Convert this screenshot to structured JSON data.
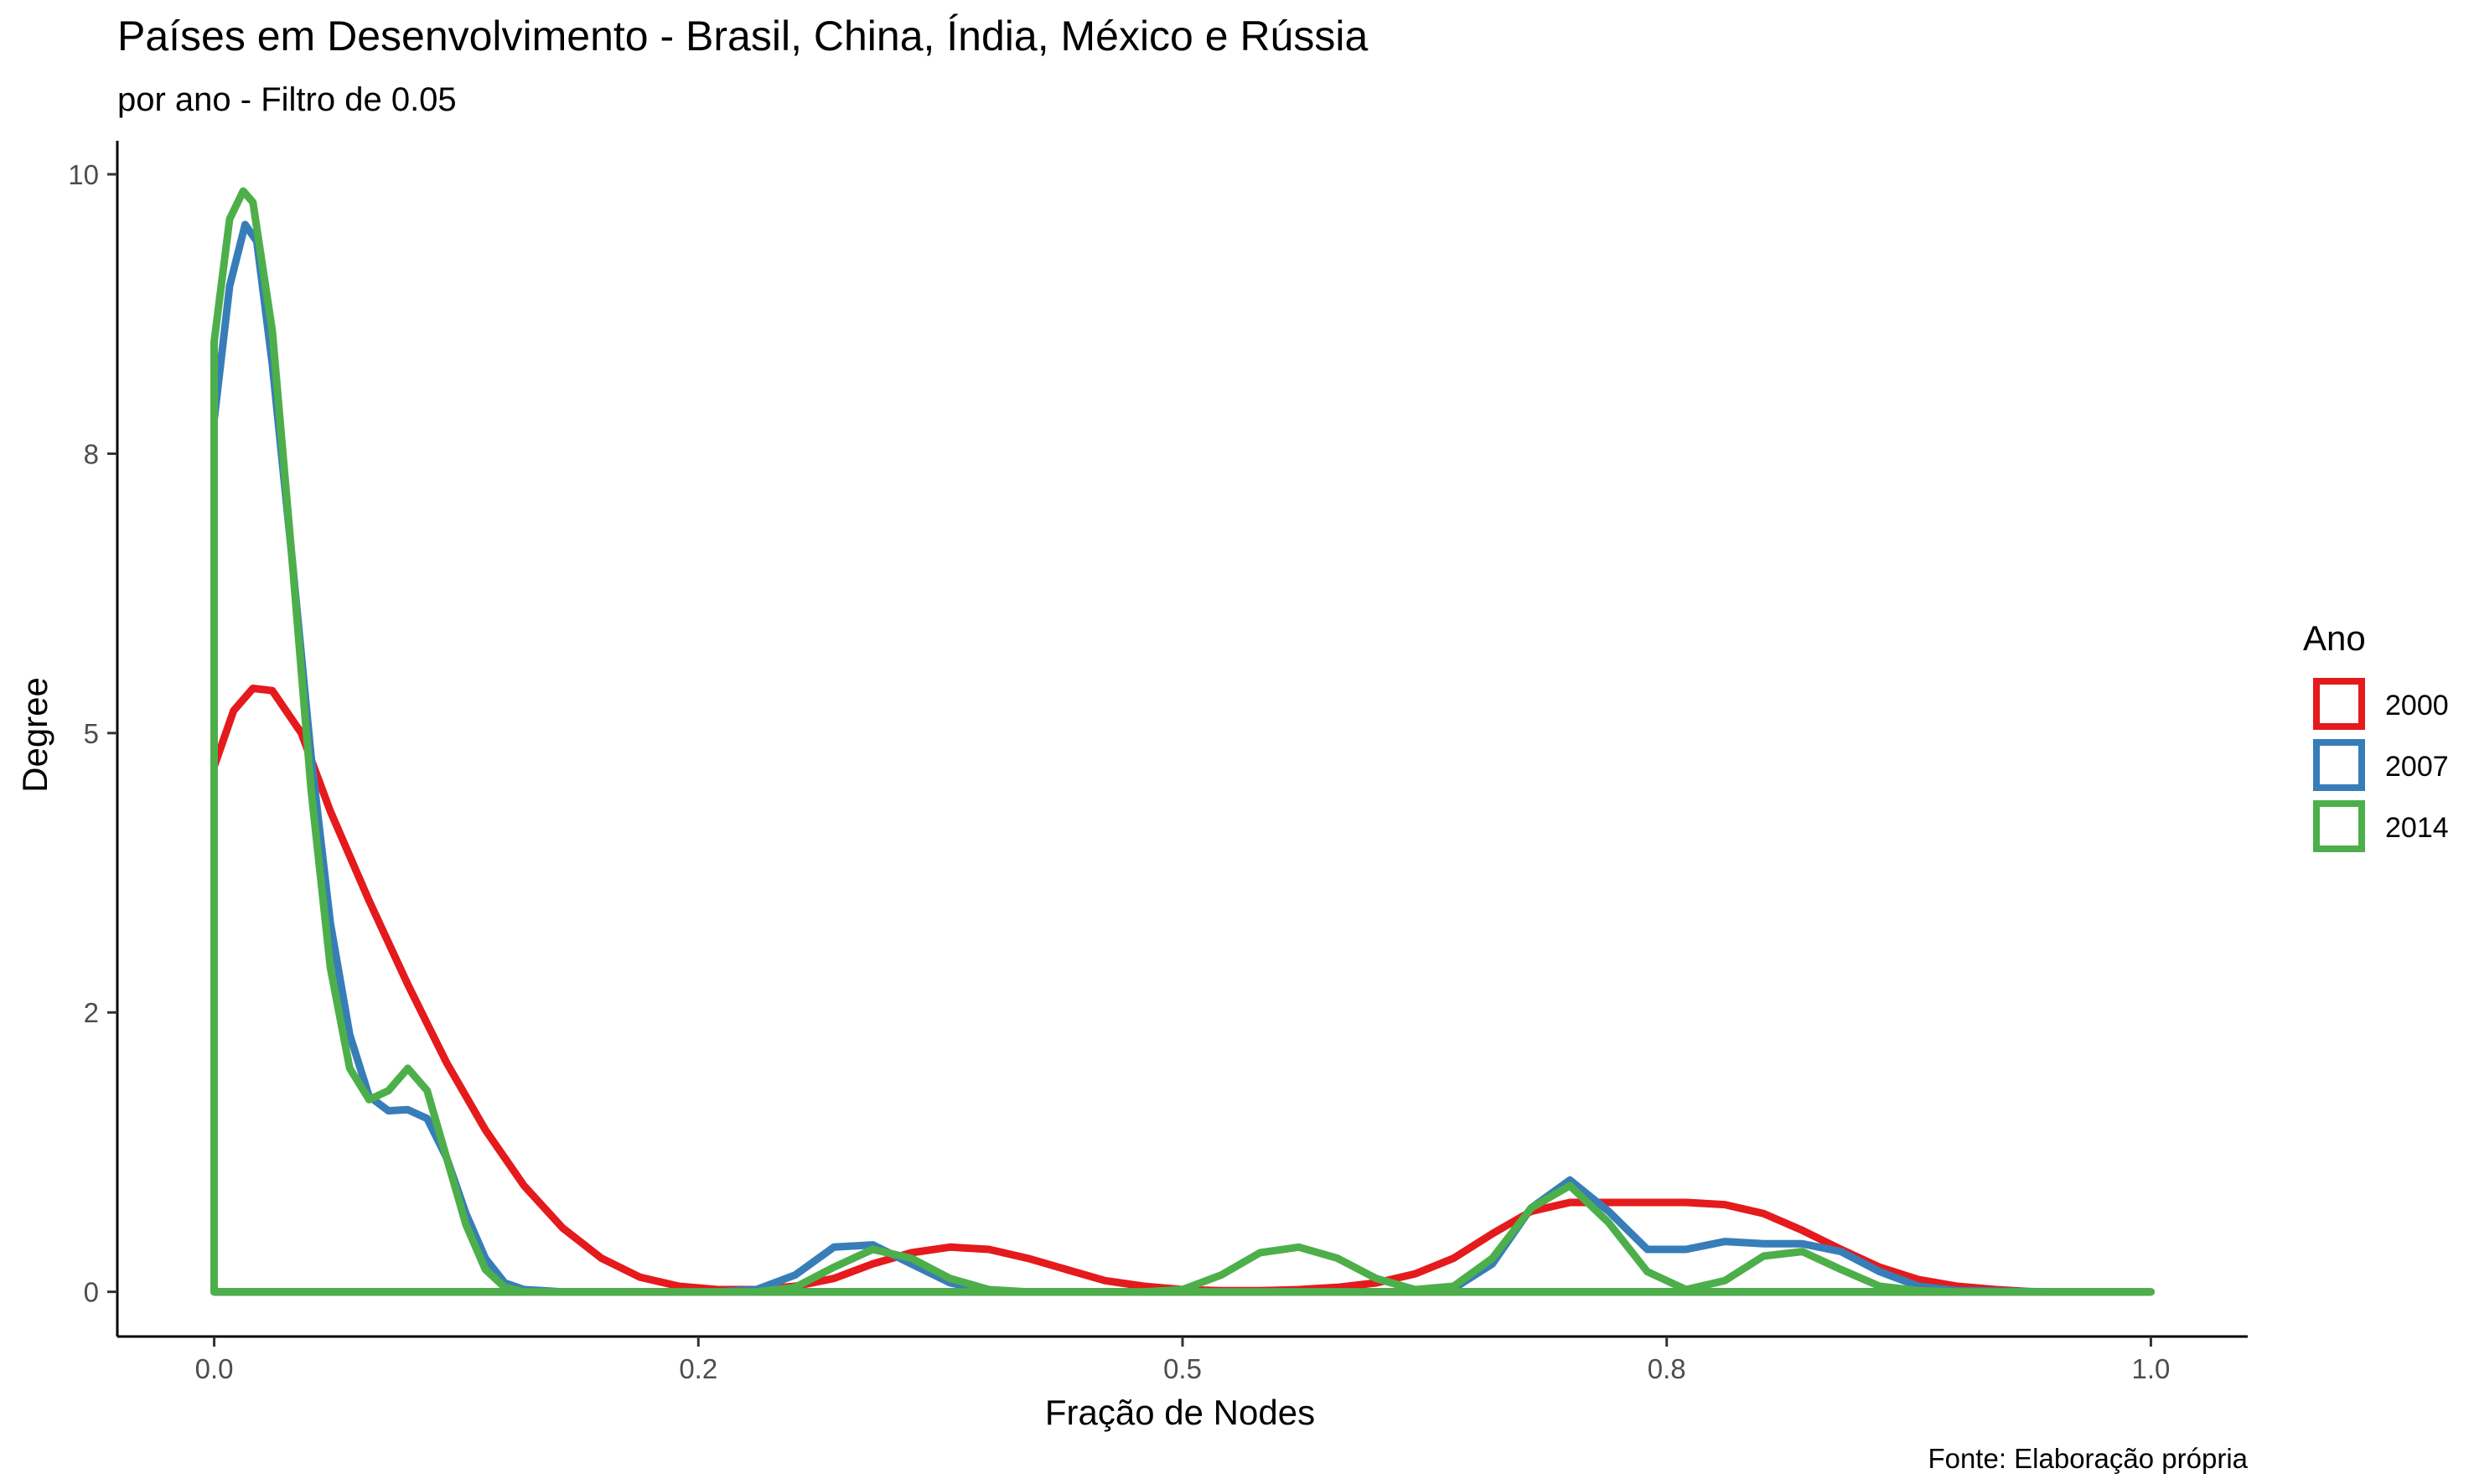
{
  "chart_data": {
    "type": "line",
    "title": "Países em Desenvolvimento - Brasil, China, Índia, México e Rússia",
    "subtitle": "por ano - Filtro de 0.05",
    "xlabel": "Fração de Nodes",
    "ylabel": "Degree",
    "caption": "Fonte: Elaboração própria",
    "xlim": [
      -0.05,
      1.05
    ],
    "ylim": [
      -0.4,
      10.3
    ],
    "x_ticks": [
      {
        "value": 0.0,
        "label": "0.0"
      },
      {
        "value": 0.25,
        "label": "0.2"
      },
      {
        "value": 0.5,
        "label": "0.5"
      },
      {
        "value": 0.75,
        "label": "0.8"
      },
      {
        "value": 1.0,
        "label": "1.0"
      }
    ],
    "y_ticks": [
      {
        "value": 0.0,
        "label": "0"
      },
      {
        "value": 2.5,
        "label": "2"
      },
      {
        "value": 5.0,
        "label": "5"
      },
      {
        "value": 7.5,
        "label": "8"
      },
      {
        "value": 10.0,
        "label": "10"
      }
    ],
    "legend": {
      "title": "Ano",
      "position": "right"
    },
    "grid": false,
    "series": [
      {
        "name": "2000",
        "color": "#E41A1C",
        "x": [
          0.0,
          0.01,
          0.02,
          0.03,
          0.045,
          0.06,
          0.08,
          0.1,
          0.12,
          0.14,
          0.16,
          0.18,
          0.2,
          0.22,
          0.24,
          0.26,
          0.28,
          0.3,
          0.32,
          0.34,
          0.36,
          0.38,
          0.4,
          0.42,
          0.44,
          0.46,
          0.48,
          0.5,
          0.52,
          0.54,
          0.56,
          0.58,
          0.6,
          0.62,
          0.64,
          0.66,
          0.68,
          0.7,
          0.72,
          0.74,
          0.76,
          0.78,
          0.8,
          0.82,
          0.84,
          0.86,
          0.88,
          0.9,
          0.92,
          0.94,
          0.96,
          0.98,
          1.0
        ],
        "y": [
          4.7,
          5.2,
          5.4,
          5.38,
          5.0,
          4.3,
          3.5,
          2.75,
          2.05,
          1.45,
          0.95,
          0.57,
          0.3,
          0.13,
          0.05,
          0.02,
          0.02,
          0.05,
          0.12,
          0.25,
          0.35,
          0.4,
          0.38,
          0.3,
          0.2,
          0.1,
          0.05,
          0.02,
          0.01,
          0.01,
          0.02,
          0.04,
          0.08,
          0.16,
          0.3,
          0.52,
          0.72,
          0.8,
          0.8,
          0.8,
          0.8,
          0.78,
          0.7,
          0.55,
          0.38,
          0.22,
          0.11,
          0.05,
          0.02,
          0.0,
          0.0,
          0.0,
          0.0
        ]
      },
      {
        "name": "2007",
        "color": "#377EB8",
        "x": [
          0.0,
          0.008,
          0.016,
          0.022,
          0.03,
          0.04,
          0.05,
          0.06,
          0.07,
          0.08,
          0.09,
          0.1,
          0.11,
          0.12,
          0.13,
          0.14,
          0.15,
          0.16,
          0.18,
          0.2,
          0.22,
          0.24,
          0.26,
          0.28,
          0.3,
          0.32,
          0.34,
          0.36,
          0.38,
          0.4,
          0.42,
          0.44,
          0.46,
          0.48,
          0.5,
          0.52,
          0.54,
          0.56,
          0.58,
          0.6,
          0.62,
          0.64,
          0.66,
          0.68,
          0.7,
          0.72,
          0.74,
          0.76,
          0.78,
          0.8,
          0.82,
          0.84,
          0.86,
          0.88,
          0.9,
          0.95,
          1.0
        ],
        "y": [
          7.8,
          9.0,
          9.55,
          9.4,
          8.3,
          6.6,
          4.8,
          3.3,
          2.3,
          1.75,
          1.62,
          1.63,
          1.55,
          1.2,
          0.7,
          0.3,
          0.08,
          0.02,
          0.0,
          0.0,
          0.0,
          0.0,
          0.0,
          0.02,
          0.15,
          0.4,
          0.42,
          0.25,
          0.08,
          0.01,
          0.0,
          0.0,
          0.0,
          0.0,
          0.0,
          0.0,
          0.0,
          0.0,
          0.0,
          0.0,
          0.0,
          0.03,
          0.25,
          0.75,
          1.0,
          0.72,
          0.38,
          0.38,
          0.45,
          0.43,
          0.43,
          0.36,
          0.18,
          0.05,
          0.01,
          0.0,
          0.0
        ]
      },
      {
        "name": "2014",
        "color": "#4DAF4A",
        "x": [
          0.0,
          0.008,
          0.015,
          0.02,
          0.03,
          0.04,
          0.05,
          0.06,
          0.07,
          0.08,
          0.09,
          0.1,
          0.11,
          0.12,
          0.13,
          0.14,
          0.15,
          0.16,
          0.18,
          0.2,
          0.22,
          0.24,
          0.26,
          0.28,
          0.3,
          0.32,
          0.34,
          0.36,
          0.38,
          0.4,
          0.42,
          0.44,
          0.46,
          0.48,
          0.5,
          0.52,
          0.54,
          0.56,
          0.58,
          0.6,
          0.62,
          0.64,
          0.66,
          0.68,
          0.7,
          0.72,
          0.74,
          0.76,
          0.78,
          0.8,
          0.82,
          0.84,
          0.86,
          0.88,
          0.9,
          0.95,
          1.0
        ],
        "y": [
          8.5,
          9.6,
          9.85,
          9.75,
          8.6,
          6.6,
          4.5,
          2.9,
          2.0,
          1.72,
          1.8,
          2.0,
          1.8,
          1.2,
          0.6,
          0.2,
          0.04,
          0.0,
          0.0,
          0.0,
          0.0,
          0.0,
          0.0,
          0.0,
          0.04,
          0.22,
          0.38,
          0.3,
          0.12,
          0.02,
          0.0,
          0.0,
          0.0,
          0.0,
          0.02,
          0.15,
          0.35,
          0.4,
          0.3,
          0.12,
          0.02,
          0.05,
          0.3,
          0.75,
          0.95,
          0.62,
          0.18,
          0.02,
          0.1,
          0.32,
          0.36,
          0.2,
          0.05,
          0.01,
          0.0,
          0.0,
          0.0
        ]
      }
    ]
  }
}
